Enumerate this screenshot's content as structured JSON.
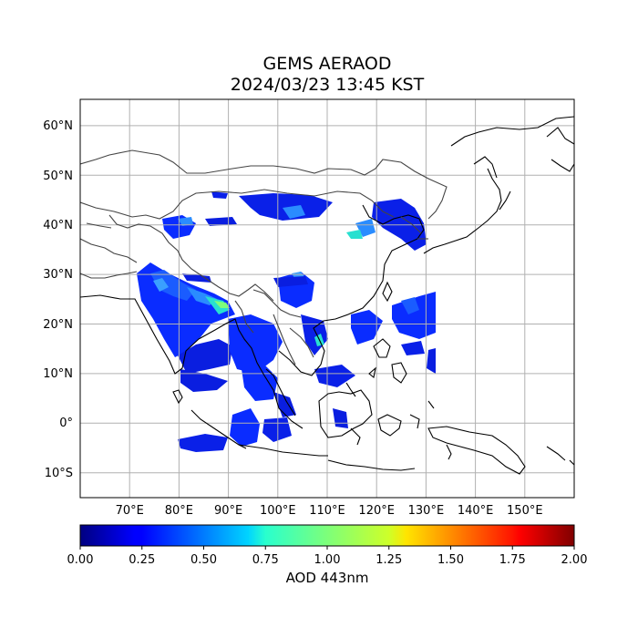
{
  "title_line1": "GEMS AERAOD",
  "title_line2": "2024/03/23 13:45 KST",
  "map": {
    "lon_range": [
      60,
      160
    ],
    "lat_range": [
      -15,
      65
    ],
    "lat_ticks": [
      {
        "value": 60,
        "label": "60°N"
      },
      {
        "value": 50,
        "label": "50°N"
      },
      {
        "value": 40,
        "label": "40°N"
      },
      {
        "value": 30,
        "label": "30°N"
      },
      {
        "value": 20,
        "label": "20°N"
      },
      {
        "value": 10,
        "label": "10°N"
      },
      {
        "value": 0,
        "label": "0°"
      },
      {
        "value": -10,
        "label": "10°S"
      }
    ],
    "lon_ticks": [
      {
        "value": 70,
        "label": "70°E"
      },
      {
        "value": 80,
        "label": "80°E"
      },
      {
        "value": 90,
        "label": "90°E"
      },
      {
        "value": 100,
        "label": "100°E"
      },
      {
        "value": 110,
        "label": "110°E"
      },
      {
        "value": 120,
        "label": "120°E"
      },
      {
        "value": 130,
        "label": "130°E"
      },
      {
        "value": 140,
        "label": "140°E"
      },
      {
        "value": 150,
        "label": "150°E"
      }
    ],
    "grid": true
  },
  "colorbar": {
    "label": "AOD 443nm",
    "range": [
      0,
      2
    ],
    "ticks": [
      "0.00",
      "0.25",
      "0.50",
      "0.75",
      "1.00",
      "1.25",
      "1.50",
      "1.75",
      "2.00"
    ],
    "colormap": "jet"
  }
}
